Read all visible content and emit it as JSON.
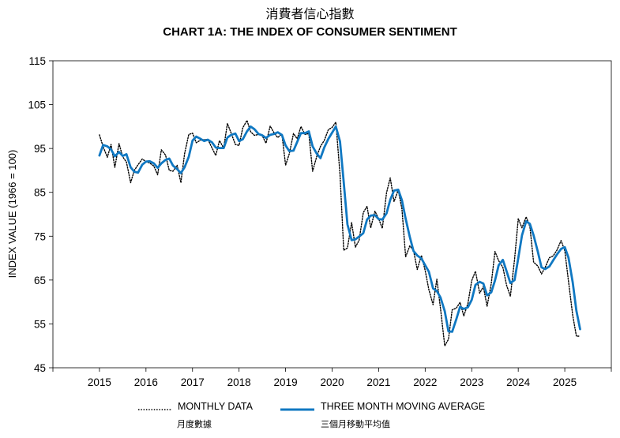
{
  "chart_data": {
    "type": "line",
    "title_cn": "消費者信心指數",
    "title": "CHART 1A: THE INDEX OF CONSUMER SENTIMENT",
    "ylabel": "INDEX VALUE (1966 = 100)",
    "xlabel": "",
    "ylim": [
      45,
      115
    ],
    "yticks": [
      45,
      55,
      65,
      75,
      85,
      95,
      105,
      115
    ],
    "xlim": [
      2014.0,
      2026.0
    ],
    "xticks": [
      "2015",
      "2016",
      "2017",
      "2018",
      "2019",
      "2020",
      "2021",
      "2022",
      "2023",
      "2024",
      "2025"
    ],
    "grid": false,
    "legend_position": "bottom",
    "series": [
      {
        "name": "MONTHLY DATA",
        "name_cn": "月度數據",
        "style": "dotted",
        "color": "#000000",
        "x": [
          2015.0,
          2015.08,
          2015.17,
          2015.25,
          2015.33,
          2015.42,
          2015.5,
          2015.58,
          2015.67,
          2015.75,
          2015.83,
          2015.92,
          2016.0,
          2016.08,
          2016.17,
          2016.25,
          2016.33,
          2016.42,
          2016.5,
          2016.58,
          2016.67,
          2016.75,
          2016.83,
          2016.92,
          2017.0,
          2017.08,
          2017.17,
          2017.25,
          2017.33,
          2017.42,
          2017.5,
          2017.58,
          2017.67,
          2017.75,
          2017.83,
          2017.92,
          2018.0,
          2018.08,
          2018.17,
          2018.25,
          2018.33,
          2018.42,
          2018.5,
          2018.58,
          2018.67,
          2018.75,
          2018.83,
          2018.92,
          2019.0,
          2019.08,
          2019.17,
          2019.25,
          2019.33,
          2019.42,
          2019.5,
          2019.58,
          2019.67,
          2019.75,
          2019.83,
          2019.92,
          2020.0,
          2020.08,
          2020.17,
          2020.25,
          2020.33,
          2020.42,
          2020.5,
          2020.58,
          2020.67,
          2020.75,
          2020.83,
          2020.92,
          2021.0,
          2021.08,
          2021.17,
          2021.25,
          2021.33,
          2021.42,
          2021.5,
          2021.58,
          2021.67,
          2021.75,
          2021.83,
          2021.92,
          2022.0,
          2022.08,
          2022.17,
          2022.25,
          2022.33,
          2022.42,
          2022.5,
          2022.58,
          2022.67,
          2022.75,
          2022.83,
          2022.92,
          2023.0,
          2023.08,
          2023.17,
          2023.25,
          2023.33,
          2023.42,
          2023.5,
          2023.58,
          2023.67,
          2023.75,
          2023.83,
          2023.92,
          2024.0,
          2024.08,
          2024.17,
          2024.25,
          2024.33,
          2024.42,
          2024.5,
          2024.58,
          2024.67,
          2024.75,
          2024.83,
          2024.92,
          2025.0,
          2025.08,
          2025.17,
          2025.25,
          2025.33
        ],
        "y": [
          98.1,
          95.4,
          93.0,
          95.9,
          90.7,
          96.1,
          93.1,
          91.9,
          87.2,
          90.0,
          91.3,
          92.6,
          92.0,
          91.7,
          91.0,
          89.0,
          94.7,
          93.5,
          90.0,
          89.8,
          91.2,
          87.2,
          93.8,
          98.2,
          98.5,
          96.3,
          96.9,
          97.0,
          97.1,
          95.1,
          93.4,
          96.8,
          95.1,
          100.7,
          98.5,
          95.9,
          95.7,
          99.7,
          101.4,
          98.8,
          98.0,
          98.2,
          97.9,
          96.2,
          100.1,
          98.6,
          97.5,
          98.3,
          91.2,
          93.8,
          98.4,
          97.2,
          100.0,
          98.2,
          98.4,
          89.8,
          93.2,
          95.5,
          96.8,
          99.3,
          99.8,
          101.0,
          89.1,
          71.8,
          72.3,
          78.1,
          72.5,
          74.1,
          80.4,
          81.8,
          76.9,
          80.7,
          79.0,
          76.8,
          84.9,
          88.3,
          82.9,
          85.5,
          81.2,
          70.3,
          72.8,
          71.7,
          67.4,
          70.6,
          67.2,
          62.8,
          59.4,
          65.2,
          58.4,
          50.0,
          51.5,
          58.2,
          58.6,
          59.9,
          56.8,
          59.7,
          64.9,
          67.0,
          62.0,
          63.5,
          59.0,
          64.2,
          71.5,
          69.4,
          67.9,
          63.8,
          61.3,
          69.7,
          79.0,
          76.9,
          79.4,
          77.2,
          69.1,
          68.2,
          66.4,
          67.9,
          70.1,
          70.5,
          71.8,
          74.0,
          71.7,
          64.7,
          57.0,
          52.2,
          52.2
        ]
      },
      {
        "name": "THREE MONTH MOVING AVERAGE",
        "name_cn": "三個月移動平均值",
        "style": "solid",
        "color": "#1078c2",
        "x": [
          2015.0,
          2015.08,
          2015.17,
          2015.25,
          2015.33,
          2015.42,
          2015.5,
          2015.58,
          2015.67,
          2015.75,
          2015.83,
          2015.92,
          2016.0,
          2016.08,
          2016.17,
          2016.25,
          2016.33,
          2016.42,
          2016.5,
          2016.58,
          2016.67,
          2016.75,
          2016.83,
          2016.92,
          2017.0,
          2017.08,
          2017.17,
          2017.25,
          2017.33,
          2017.42,
          2017.5,
          2017.58,
          2017.67,
          2017.75,
          2017.83,
          2017.92,
          2018.0,
          2018.08,
          2018.17,
          2018.25,
          2018.33,
          2018.42,
          2018.5,
          2018.58,
          2018.67,
          2018.75,
          2018.83,
          2018.92,
          2019.0,
          2019.08,
          2019.17,
          2019.25,
          2019.33,
          2019.42,
          2019.5,
          2019.58,
          2019.67,
          2019.75,
          2019.83,
          2019.92,
          2020.0,
          2020.08,
          2020.17,
          2020.25,
          2020.33,
          2020.42,
          2020.5,
          2020.58,
          2020.67,
          2020.75,
          2020.83,
          2020.92,
          2021.0,
          2021.08,
          2021.17,
          2021.25,
          2021.33,
          2021.42,
          2021.5,
          2021.58,
          2021.67,
          2021.75,
          2021.83,
          2021.92,
          2022.0,
          2022.08,
          2022.17,
          2022.25,
          2022.33,
          2022.42,
          2022.5,
          2022.58,
          2022.67,
          2022.75,
          2022.83,
          2022.92,
          2023.0,
          2023.08,
          2023.17,
          2023.25,
          2023.33,
          2023.42,
          2023.5,
          2023.58,
          2023.67,
          2023.75,
          2023.83,
          2023.92,
          2024.0,
          2024.08,
          2024.17,
          2024.25,
          2024.33,
          2024.42,
          2024.5,
          2024.58,
          2024.67,
          2024.75,
          2024.83,
          2024.92,
          2025.0,
          2025.08,
          2025.17,
          2025.25,
          2025.33
        ],
        "y": [
          93.4,
          95.8,
          95.5,
          94.8,
          93.2,
          94.2,
          93.3,
          93.7,
          90.7,
          89.7,
          89.5,
          91.3,
          92.0,
          92.1,
          91.6,
          90.6,
          91.6,
          92.4,
          92.7,
          91.1,
          90.3,
          89.4,
          90.7,
          93.1,
          96.8,
          97.7,
          97.2,
          96.7,
          97.0,
          96.4,
          95.2,
          95.1,
          95.1,
          97.5,
          98.1,
          98.4,
          96.7,
          97.1,
          98.9,
          100.0,
          99.4,
          98.3,
          98.0,
          97.4,
          98.1,
          98.3,
          98.7,
          98.1,
          95.7,
          94.4,
          94.5,
          96.5,
          98.5,
          98.5,
          98.9,
          95.5,
          93.8,
          92.8,
          95.2,
          97.2,
          98.6,
          100.0,
          96.6,
          87.3,
          77.7,
          74.1,
          74.3,
          74.9,
          75.7,
          78.8,
          79.7,
          79.8,
          78.9,
          78.8,
          80.2,
          83.3,
          85.4,
          85.6,
          83.2,
          79.0,
          74.8,
          71.6,
          70.6,
          69.9,
          68.4,
          66.9,
          63.1,
          62.5,
          61.0,
          57.9,
          53.3,
          53.2,
          56.1,
          58.9,
          58.4,
          58.8,
          60.5,
          63.9,
          64.6,
          64.2,
          61.5,
          62.2,
          64.9,
          68.4,
          69.6,
          67.0,
          64.3,
          65.0,
          70.0,
          75.2,
          78.4,
          77.8,
          75.2,
          71.5,
          67.9,
          67.5,
          68.1,
          69.5,
          70.8,
          72.1,
          72.5,
          70.1,
          64.5,
          58.0,
          53.8
        ]
      }
    ]
  }
}
